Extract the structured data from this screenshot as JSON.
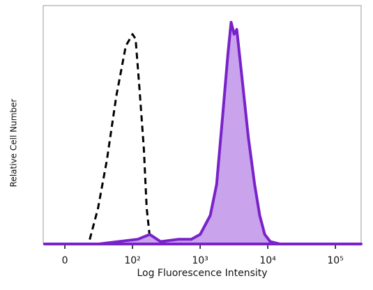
{
  "chart_data": {
    "type": "histogram-overlay",
    "x_label": "Log Fluorescence Intensity",
    "y_label": "Relative Cell Number",
    "xscale": "biexponential",
    "xlim": [
      -32,
      240000
    ],
    "ylim": [
      0,
      100
    ],
    "xticks": [
      0,
      {
        "value": 100,
        "label": "10²"
      },
      {
        "value": 1000,
        "label": "10³"
      },
      {
        "value": 10000,
        "label": "10⁴"
      },
      {
        "value": 100000,
        "label": "10⁵"
      }
    ],
    "series": [
      {
        "color": "#000000",
        "dashed": true,
        "filled": false,
        "x": [
          -20,
          20,
          35,
          49,
          62,
          76,
          90,
          100,
          111,
          127,
          147,
          162,
          180,
          200,
          400
        ],
        "values": [
          0,
          0,
          0,
          15,
          35,
          62,
          83,
          88,
          86,
          65,
          40,
          15,
          3,
          0,
          0
        ]
      },
      {
        "color": "#7a22c9",
        "fill": "#c9a3ec",
        "dashed": false,
        "filled": true,
        "x": [
          -30,
          50,
          120,
          180,
          260,
          480,
          740,
          1000,
          1410,
          1750,
          2170,
          2580,
          2870,
          3180,
          3480,
          4150,
          5150,
          6390,
          7600,
          9000,
          10900,
          15000,
          100000,
          240000
        ],
        "values": [
          0,
          0,
          2,
          4,
          1,
          2,
          2,
          4,
          12,
          25,
          55,
          80,
          93,
          88,
          90,
          70,
          45,
          25,
          12,
          4,
          1,
          0,
          0,
          0
        ]
      }
    ]
  }
}
